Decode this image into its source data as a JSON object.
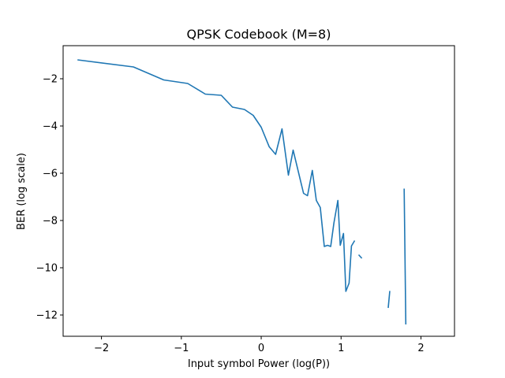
{
  "chart_data": {
    "type": "line",
    "title": "QPSK Codebook (M=8)",
    "xlabel": "Input symbol Power (log(P))",
    "ylabel": "BER (log scale)",
    "xlim": [
      -2.48,
      2.42
    ],
    "ylim": [
      -12.9,
      -0.6
    ],
    "xticks": [
      -2,
      -1,
      0,
      1,
      2
    ],
    "xtick_labels": [
      "−2",
      "−1",
      "0",
      "1",
      "2"
    ],
    "yticks": [
      -2,
      -4,
      -6,
      -8,
      -10,
      -12
    ],
    "ytick_labels": [
      "−2",
      "−4",
      "−6",
      "−8",
      "−10",
      "−12"
    ],
    "grid": false,
    "legend": "none",
    "line_color": "#1f77b4",
    "series": [
      {
        "segments": [
          [
            [
              -2.3,
              -1.2
            ],
            [
              -1.6,
              -1.5
            ],
            [
              -1.22,
              -2.05
            ],
            [
              -0.92,
              -2.2
            ],
            [
              -0.7,
              -2.65
            ],
            [
              -0.5,
              -2.7
            ],
            [
              -0.36,
              -3.2
            ],
            [
              -0.21,
              -3.3
            ],
            [
              -0.1,
              -3.55
            ],
            [
              0.0,
              -4.05
            ],
            [
              0.1,
              -4.88
            ],
            [
              0.18,
              -5.2
            ],
            [
              0.26,
              -4.12
            ],
            [
              0.34,
              -6.08
            ],
            [
              0.4,
              -5.02
            ],
            [
              0.53,
              -6.85
            ],
            [
              0.58,
              -6.95
            ],
            [
              0.64,
              -5.88
            ],
            [
              0.69,
              -7.15
            ],
            [
              0.74,
              -7.45
            ],
            [
              0.79,
              -9.1
            ],
            [
              0.83,
              -9.05
            ],
            [
              0.87,
              -9.1
            ],
            [
              0.91,
              -8.1
            ],
            [
              0.96,
              -7.15
            ],
            [
              0.99,
              -9.05
            ],
            [
              1.03,
              -8.55
            ],
            [
              1.06,
              -11.0
            ],
            [
              1.1,
              -10.65
            ],
            [
              1.13,
              -9.08
            ],
            [
              1.17,
              -8.85
            ]
          ],
          [
            [
              1.22,
              -9.45
            ],
            [
              1.26,
              -9.6
            ]
          ],
          [
            [
              1.59,
              -11.7
            ],
            [
              1.61,
              -10.98
            ]
          ],
          [
            [
              1.79,
              -6.65
            ],
            [
              1.81,
              -12.4
            ]
          ]
        ]
      }
    ]
  }
}
